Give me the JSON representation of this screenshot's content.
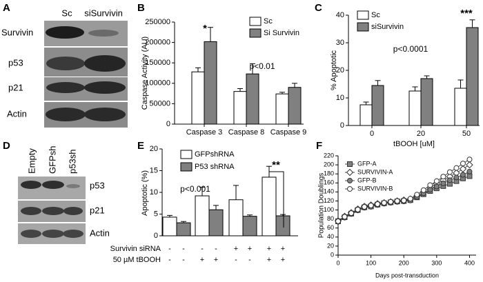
{
  "blots": [
    {
      "panel": "A",
      "columns": [
        "Sc",
        "siSurvivin"
      ],
      "rows": [
        "Survivin",
        "p53",
        "p21",
        "Actin"
      ]
    },
    {
      "panel": "D",
      "columns": [
        "Empty",
        "GFPsh",
        "p53sh"
      ],
      "rows": [
        "p53",
        "p21",
        "Actin"
      ]
    }
  ],
  "chart_data": [
    {
      "type": "bar",
      "panel": "B",
      "ylabel": "Caspase Activity (AU)",
      "categories": [
        "Caspase 3",
        "Caspase 8",
        "Caspase 9"
      ],
      "series": [
        {
          "name": "Sc",
          "color": "#ffffff",
          "values": [
            128000,
            80000,
            74000
          ],
          "errors": [
            10000,
            7000,
            4000
          ]
        },
        {
          "name": "Si Survivin",
          "color": "#808080",
          "values": [
            202000,
            123000,
            90000
          ],
          "errors": [
            35000,
            25000,
            10000
          ]
        }
      ],
      "ylim": [
        0,
        250000
      ],
      "yticks": [
        0,
        50000,
        100000,
        150000,
        200000,
        250000
      ],
      "annotations": [
        "*",
        "p<0.01"
      ]
    },
    {
      "type": "bar",
      "panel": "C",
      "ylabel": "% Apoptotic",
      "xlabel": "tBOOH [uM]",
      "categories": [
        "0",
        "20",
        "50"
      ],
      "series": [
        {
          "name": "Sc",
          "color": "#ffffff",
          "values": [
            7.5,
            12.5,
            13.5
          ],
          "errors": [
            1,
            1.5,
            3
          ]
        },
        {
          "name": "siSurvivin",
          "color": "#808080",
          "values": [
            14.5,
            17,
            35.5
          ],
          "errors": [
            1.8,
            1,
            2.8
          ]
        }
      ],
      "ylim": [
        0,
        40
      ],
      "yticks": [
        0,
        10,
        20,
        30,
        40
      ],
      "annotations": [
        "***",
        "p<0.0001"
      ]
    },
    {
      "type": "bar",
      "panel": "E",
      "ylabel": "Apoptotic (%)",
      "categories": [
        null,
        null,
        null,
        null
      ],
      "series": [
        {
          "name": "GFPshRNA",
          "color": "#ffffff",
          "values": [
            4.3,
            9.2,
            8.3,
            13.5
          ],
          "errors": [
            0.4,
            2,
            3.3,
            2.5
          ]
        },
        {
          "name": "P53 shRNA",
          "color": "#808080",
          "values": [
            3,
            6,
            4.5,
            4.6
          ],
          "errors": [
            0.3,
            1,
            0.3,
            0.3
          ]
        }
      ],
      "ylim": [
        0,
        20
      ],
      "yticks": [
        0,
        5,
        10,
        15,
        20
      ],
      "annotations": [
        "**",
        "p<0.001"
      ],
      "conditions": [
        {
          "label": "Survivin siRNA",
          "signs": [
            "-",
            "-",
            "-",
            "-",
            "+",
            "+",
            "+",
            "+"
          ]
        },
        {
          "label": "50 µM tBOOH",
          "signs": [
            "-",
            "-",
            "+",
            "+",
            "-",
            "-",
            "+",
            "+"
          ]
        }
      ]
    },
    {
      "type": "line",
      "panel": "F",
      "xlabel": "Days post-transduction",
      "ylabel": "Population Doublings",
      "x": [
        0,
        20,
        40,
        60,
        80,
        100,
        120,
        140,
        160,
        180,
        200,
        220,
        240,
        260,
        280,
        300,
        320,
        340,
        360,
        380,
        400
      ],
      "series": [
        {
          "name": "GFP-A",
          "color": "#808080",
          "marker": "square",
          "values": [
            75,
            84,
            92,
            100,
            106,
            108,
            112,
            115,
            117,
            119,
            120,
            122,
            128,
            135,
            142,
            148,
            153,
            158,
            164,
            170,
            175
          ]
        },
        {
          "name": "SURVIVIN-A",
          "color": "#ffffff",
          "marker": "diamond",
          "values": [
            76,
            86,
            94,
            102,
            108,
            111,
            114,
            116,
            118,
            120,
            122,
            124,
            131,
            140,
            150,
            158,
            166,
            174,
            182,
            191,
            200
          ]
        },
        {
          "name": "GFP-B",
          "color": "#808080",
          "marker": "circle",
          "values": [
            74,
            83,
            91,
            99,
            105,
            107,
            111,
            114,
            116,
            118,
            119,
            121,
            129,
            137,
            145,
            152,
            159,
            166,
            172,
            178,
            185
          ]
        },
        {
          "name": "SURVIVIN-B",
          "color": "#ffffff",
          "marker": "circle",
          "values": [
            75,
            85,
            93,
            101,
            107,
            110,
            113,
            116,
            118,
            120,
            121,
            125,
            134,
            144,
            155,
            164,
            174,
            184,
            193,
            203,
            212
          ]
        }
      ],
      "xlim": [
        0,
        420
      ],
      "xticks": [
        0,
        100,
        200,
        300,
        400
      ],
      "ylim": [
        0,
        220
      ],
      "yticks": [
        0,
        20,
        40,
        60,
        80,
        100,
        120,
        140,
        160,
        180,
        200,
        220
      ]
    }
  ]
}
